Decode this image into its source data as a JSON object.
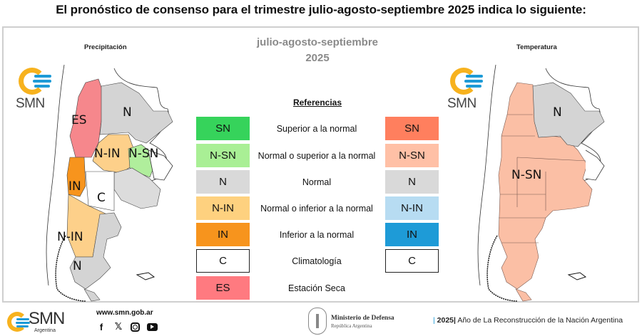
{
  "headline": "El pronóstico de consenso para el trimestre julio-agosto-septiembre 2025 indica lo siguiente:",
  "period": {
    "line1": "julio-agosto-septiembre",
    "line2": "2025"
  },
  "maps": {
    "precipitation": {
      "title": "Precipitación",
      "logo_text": "SMN",
      "region_labels": [
        "ES",
        "N",
        "N-IN",
        "N-SN",
        "IN",
        "C",
        "N-IN",
        "N"
      ]
    },
    "temperature": {
      "title": "Temperatura",
      "logo_text": "SMN",
      "region_labels": [
        "N",
        "N-SN"
      ]
    }
  },
  "legend": {
    "title": "Referencias",
    "rows": [
      {
        "left_code": "SN",
        "left_color": "#36d35b",
        "label": "Superior a la normal",
        "right_code": "SN",
        "right_color": "#ff7f5e"
      },
      {
        "left_code": "N-SN",
        "left_color": "#a9ef95",
        "label": "Normal o superior a la normal",
        "right_code": "N-SN",
        "right_color": "#ffc0a6"
      },
      {
        "left_code": "N",
        "left_color": "#d9d9d9",
        "label": "Normal",
        "right_code": "N",
        "right_color": "#d9d9d9"
      },
      {
        "left_code": "N-IN",
        "left_color": "#fed17f",
        "label": "Normal o inferior a la normal",
        "right_code": "N-IN",
        "right_color": "#b7dcf2"
      },
      {
        "left_code": "IN",
        "left_color": "#f7941d",
        "label": "Inferior a la normal",
        "right_code": "IN",
        "right_color": "#1e9bd7"
      },
      {
        "left_code": "C",
        "left_color": "#ffffff",
        "label": "Climatología",
        "right_code": "C",
        "right_color": "#ffffff"
      },
      {
        "left_code": "ES",
        "left_color": "#ff7a80",
        "label": "Estación Seca",
        "right_code": "",
        "right_color": ""
      }
    ]
  },
  "footer": {
    "logo_name": "SMN",
    "logo_sub": "Argentina",
    "url": "www.smn.gob.ar",
    "socials": [
      "facebook-icon",
      "x-icon",
      "instagram-icon",
      "youtube-icon"
    ],
    "ministry": "Ministerio de Defensa",
    "ministry_sub": "República Argentina",
    "motto_year": "2025",
    "motto_text": "Año de La Reconstrucción de la Nación Argentina"
  }
}
